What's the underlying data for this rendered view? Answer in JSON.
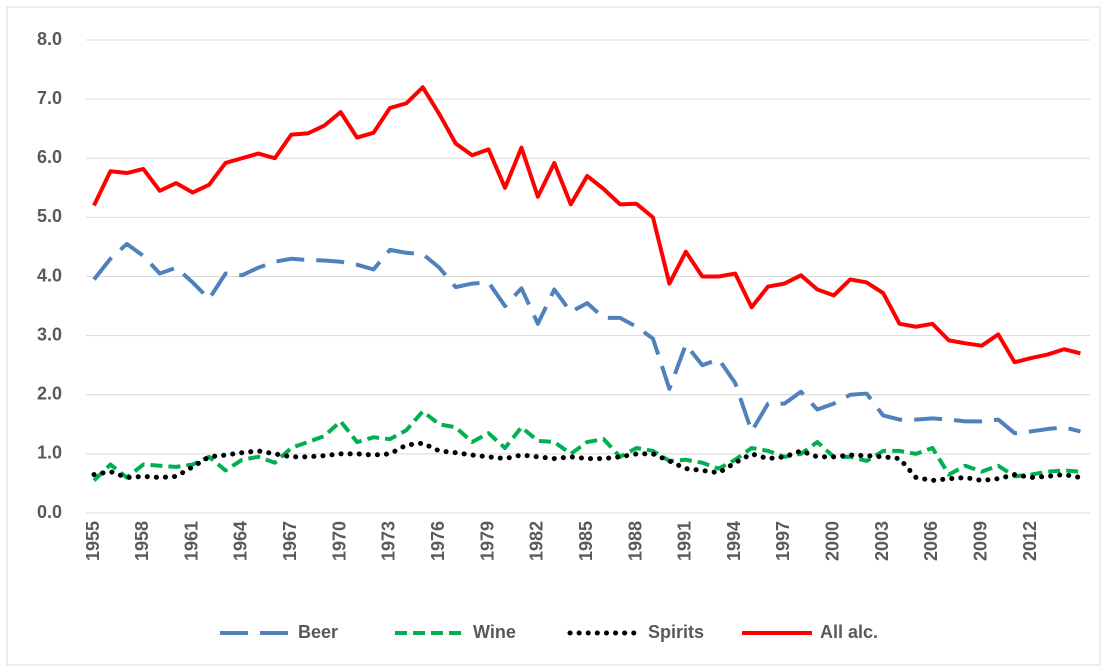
{
  "chart_data": {
    "type": "line",
    "categories": [
      "1955",
      null,
      null,
      "1958",
      null,
      null,
      "1961",
      null,
      null,
      "1964",
      null,
      null,
      "1967",
      null,
      null,
      "1970",
      null,
      null,
      "1973",
      null,
      null,
      "1976",
      null,
      null,
      "1979",
      null,
      null,
      "1982",
      null,
      null,
      "1985",
      null,
      null,
      "1988",
      null,
      null,
      "1991",
      null,
      null,
      "1994",
      null,
      null,
      "1997",
      null,
      null,
      "2000",
      null,
      null,
      "2003",
      null,
      null,
      "2006",
      null,
      null,
      "2009",
      null,
      null,
      "2012",
      null,
      null,
      null
    ],
    "series": [
      {
        "name": "Beer",
        "color": "#4f81bd",
        "style": "dashed",
        "values": [
          3.95,
          4.3,
          4.55,
          4.35,
          4.05,
          4.15,
          3.9,
          3.62,
          4.05,
          4.02,
          4.15,
          4.25,
          4.3,
          4.28,
          4.27,
          4.25,
          4.2,
          4.12,
          4.45,
          4.4,
          4.38,
          4.15,
          3.82,
          3.88,
          3.9,
          3.5,
          3.8,
          3.2,
          3.78,
          3.4,
          3.55,
          3.3,
          3.3,
          3.15,
          2.95,
          2.1,
          2.85,
          2.5,
          2.6,
          2.2,
          1.38,
          1.85,
          1.85,
          2.05,
          1.75,
          1.85,
          2.0,
          2.02,
          1.65,
          1.58,
          1.58,
          1.6,
          1.58,
          1.55,
          1.55,
          1.58,
          1.35,
          1.38,
          1.42,
          1.45,
          1.38
        ]
      },
      {
        "name": "Wine",
        "color": "#00b050",
        "style": "short-dashed",
        "values": [
          0.55,
          0.82,
          0.6,
          0.82,
          0.8,
          0.78,
          0.82,
          0.95,
          0.72,
          0.9,
          0.95,
          0.85,
          1.1,
          1.2,
          1.3,
          1.55,
          1.2,
          1.28,
          1.25,
          1.4,
          1.72,
          1.5,
          1.45,
          1.2,
          1.35,
          1.1,
          1.45,
          1.22,
          1.2,
          1.0,
          1.2,
          1.25,
          0.95,
          1.1,
          1.05,
          0.88,
          0.9,
          0.85,
          0.75,
          0.9,
          1.1,
          1.05,
          0.95,
          1.0,
          1.2,
          0.95,
          0.95,
          0.88,
          1.05,
          1.05,
          1.0,
          1.1,
          0.65,
          0.8,
          0.7,
          0.8,
          0.62,
          0.65,
          0.7,
          0.72,
          0.7
        ]
      },
      {
        "name": "Spirits",
        "color": "#000000",
        "style": "dotted",
        "values": [
          0.65,
          0.7,
          0.6,
          0.62,
          0.6,
          0.62,
          0.78,
          0.95,
          0.98,
          1.02,
          1.05,
          1.0,
          0.95,
          0.95,
          0.97,
          1.0,
          1.0,
          0.98,
          1.0,
          1.15,
          1.18,
          1.05,
          1.02,
          0.98,
          0.95,
          0.92,
          0.98,
          0.95,
          0.92,
          0.95,
          0.92,
          0.92,
          0.95,
          1.0,
          1.0,
          0.88,
          0.75,
          0.72,
          0.68,
          0.85,
          1.0,
          0.92,
          0.95,
          1.05,
          0.95,
          0.95,
          0.98,
          0.97,
          0.95,
          0.92,
          0.6,
          0.55,
          0.58,
          0.6,
          0.55,
          0.58,
          0.65,
          0.6,
          0.62,
          0.65,
          0.6
        ]
      },
      {
        "name": "All alc.",
        "color": "#ff0000",
        "style": "solid",
        "values": [
          5.2,
          5.78,
          5.75,
          5.82,
          5.45,
          5.58,
          5.42,
          5.55,
          5.92,
          6.0,
          6.08,
          6.0,
          6.4,
          6.42,
          6.55,
          6.78,
          6.35,
          6.43,
          6.85,
          6.93,
          7.2,
          6.75,
          6.25,
          6.05,
          6.15,
          5.5,
          6.18,
          5.35,
          5.92,
          5.22,
          5.7,
          5.48,
          5.22,
          5.23,
          5.0,
          3.88,
          4.42,
          4.0,
          4.0,
          4.05,
          3.48,
          3.83,
          3.88,
          4.02,
          3.78,
          3.68,
          3.95,
          3.9,
          3.72,
          3.2,
          3.15,
          3.2,
          2.92,
          2.87,
          2.83,
          3.02,
          2.55,
          2.62,
          2.68,
          2.77,
          2.7
        ]
      }
    ],
    "ylim": [
      0,
      8
    ],
    "yticks": [
      {
        "value": 0,
        "label": "0.0"
      },
      {
        "value": 1,
        "label": "1.0"
      },
      {
        "value": 2,
        "label": "2.0"
      },
      {
        "value": 3,
        "label": "3.0"
      },
      {
        "value": 4,
        "label": "4.0"
      },
      {
        "value": 5,
        "label": "5.0"
      },
      {
        "value": 6,
        "label": "6.0"
      },
      {
        "value": 7,
        "label": "7.0"
      },
      {
        "value": 8,
        "label": "8.0"
      }
    ],
    "grid": true,
    "legend": "bottom"
  }
}
